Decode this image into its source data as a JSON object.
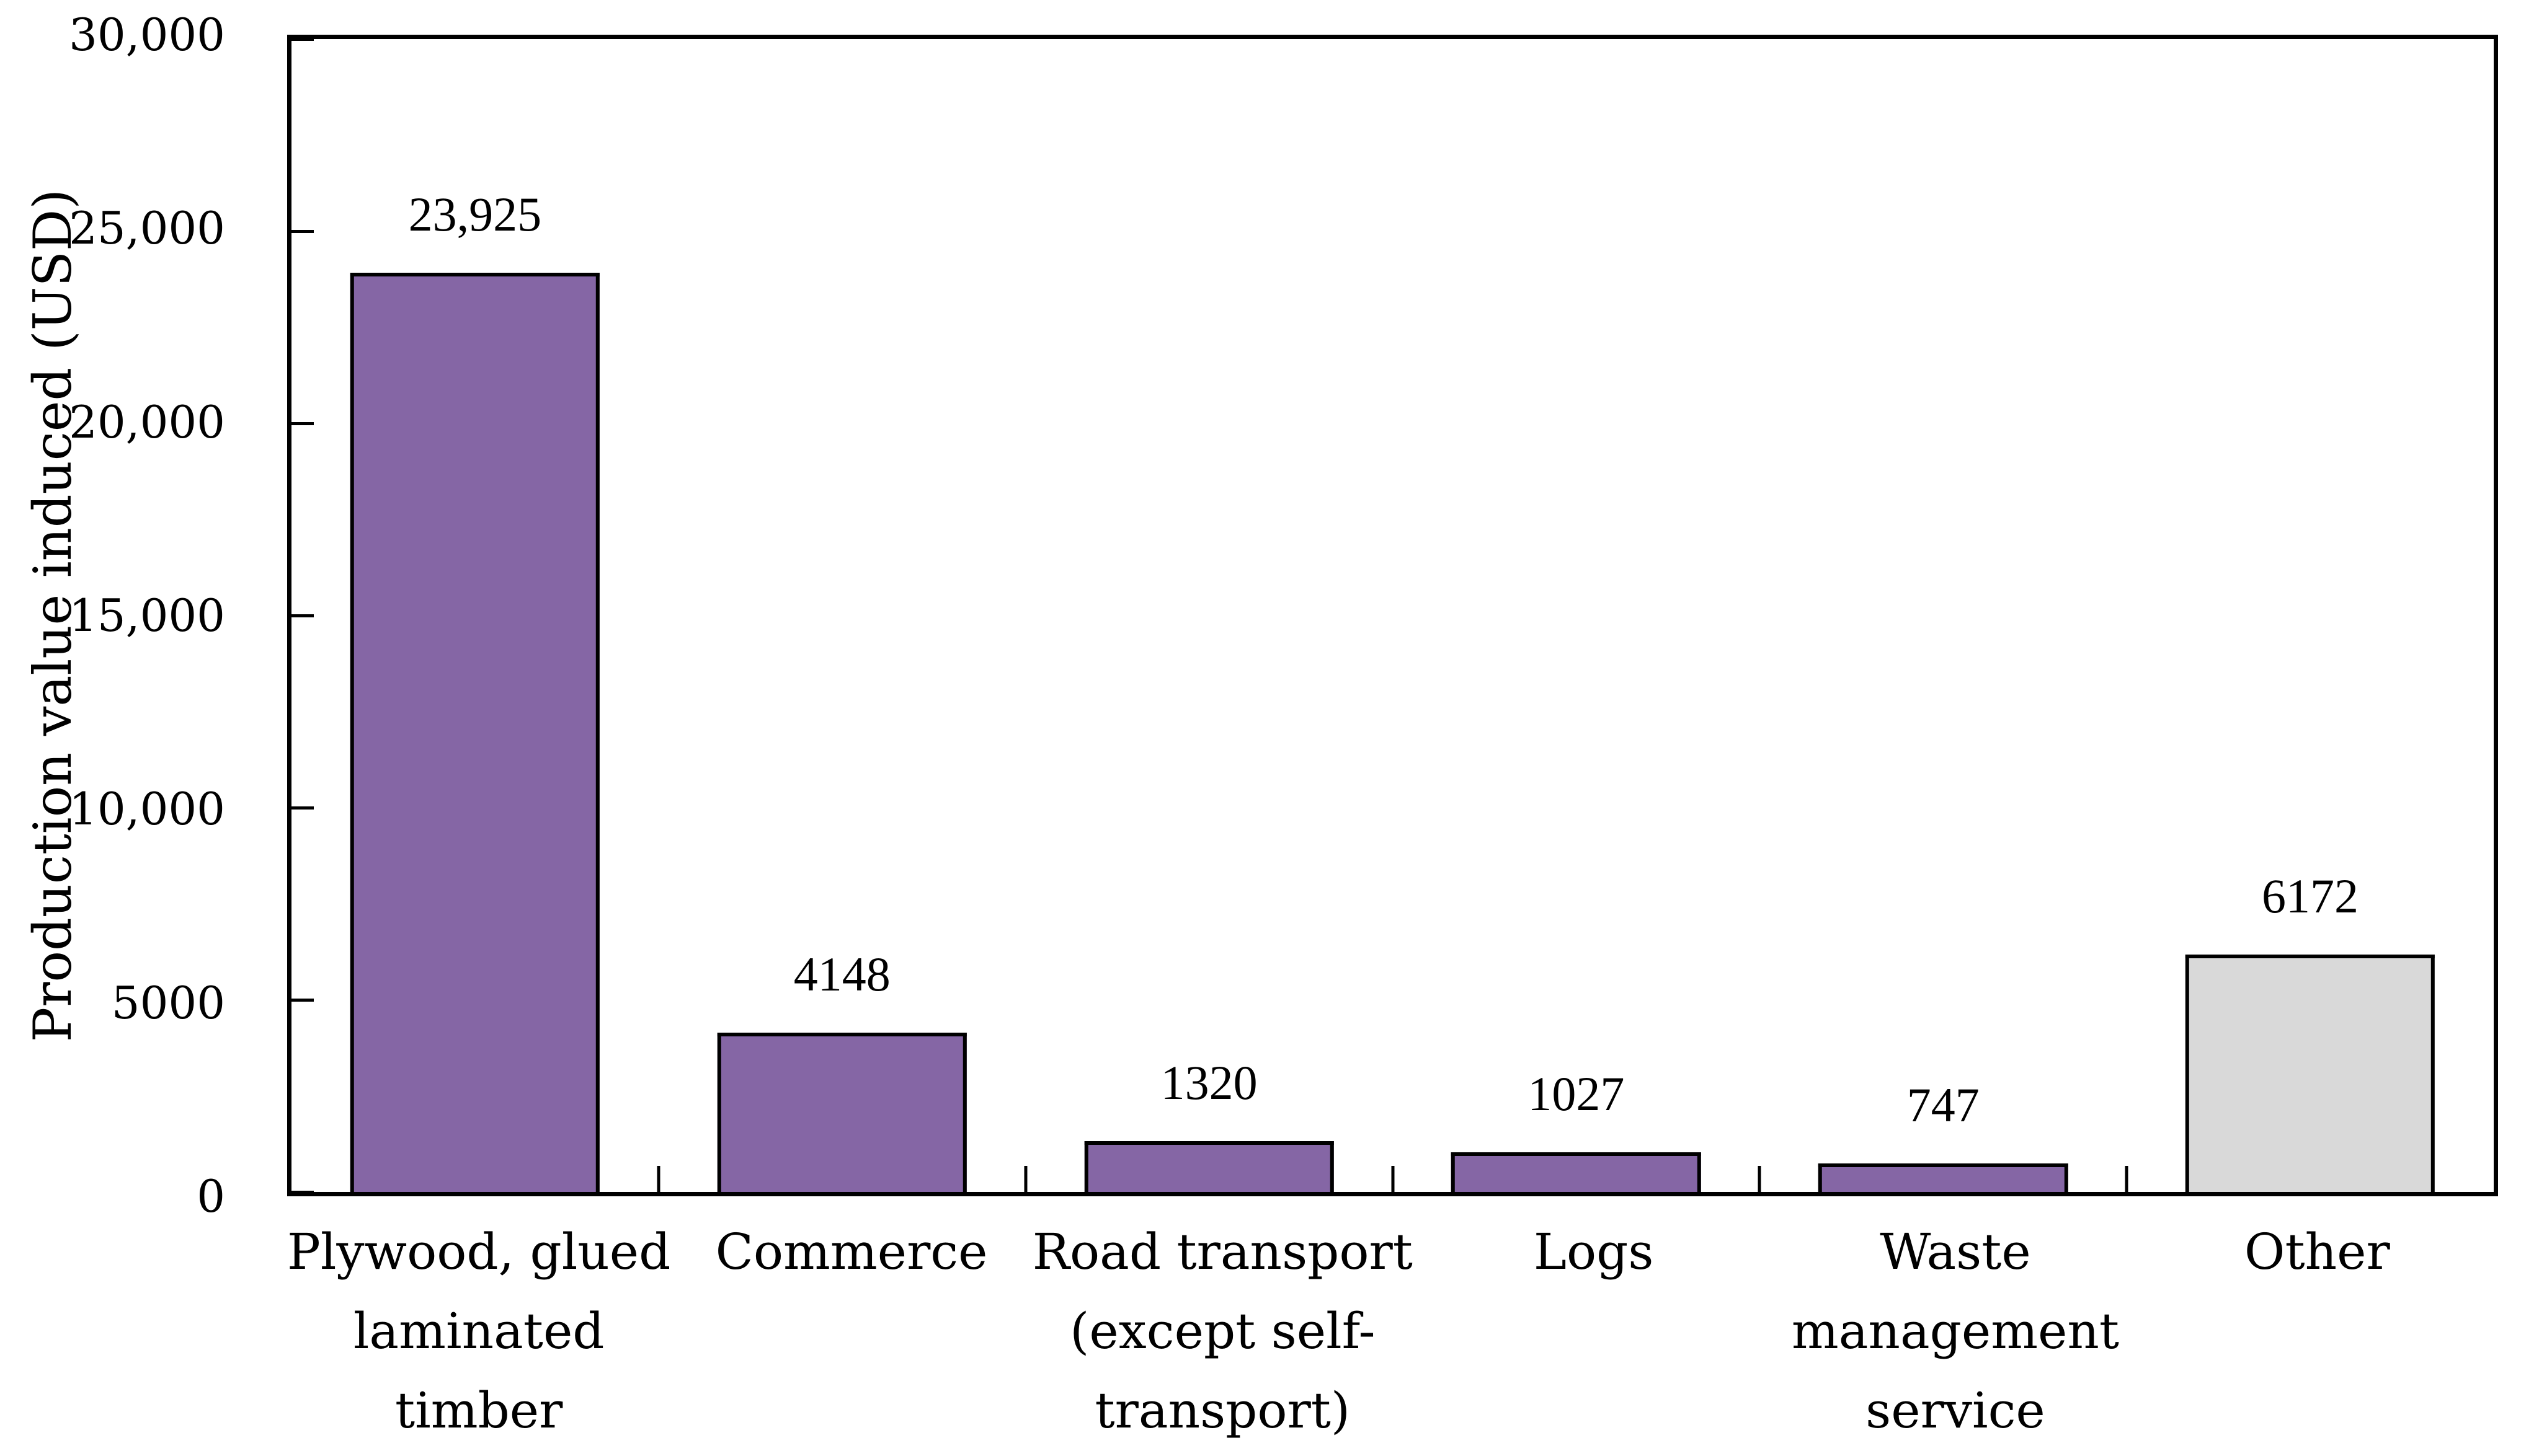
{
  "figure": {
    "background": "#ffffff",
    "axis_color": "#000000"
  },
  "chart_data": {
    "type": "bar",
    "title": "",
    "xlabel": "",
    "ylabel": "Production value induced (USD)",
    "categories": [
      "Plywood, glued laminated timber",
      "Commerce",
      "Road transport (except self-transport)",
      "Logs",
      "Waste management service",
      "Other"
    ],
    "category_lines": [
      [
        "Plywood, glued",
        "laminated",
        "timber"
      ],
      [
        "Commerce"
      ],
      [
        "Road transport",
        "(except self-",
        "transport)"
      ],
      [
        "Logs"
      ],
      [
        "Waste",
        "management",
        "service"
      ],
      [
        "Other"
      ]
    ],
    "values": [
      23925,
      4148,
      1320,
      1027,
      747,
      6172
    ],
    "value_labels": [
      "23,925",
      "4148",
      "1320",
      "1027",
      "747",
      "6172"
    ],
    "bar_colors": [
      "#8566A5",
      "#8566A5",
      "#8566A5",
      "#8566A5",
      "#8566A5",
      "#D9D9D9"
    ],
    "bar_border_color": "#000000",
    "ylim": [
      0,
      30000
    ],
    "y_ticks": [
      {
        "value": 0,
        "label": "0"
      },
      {
        "value": 5000,
        "label": "5000"
      },
      {
        "value": 10000,
        "label": "10,000"
      },
      {
        "value": 15000,
        "label": "15,000"
      },
      {
        "value": 20000,
        "label": "20,000"
      },
      {
        "value": 25000,
        "label": "25,000"
      },
      {
        "value": 30000,
        "label": "30,000"
      }
    ],
    "grid": false,
    "legend": false
  }
}
